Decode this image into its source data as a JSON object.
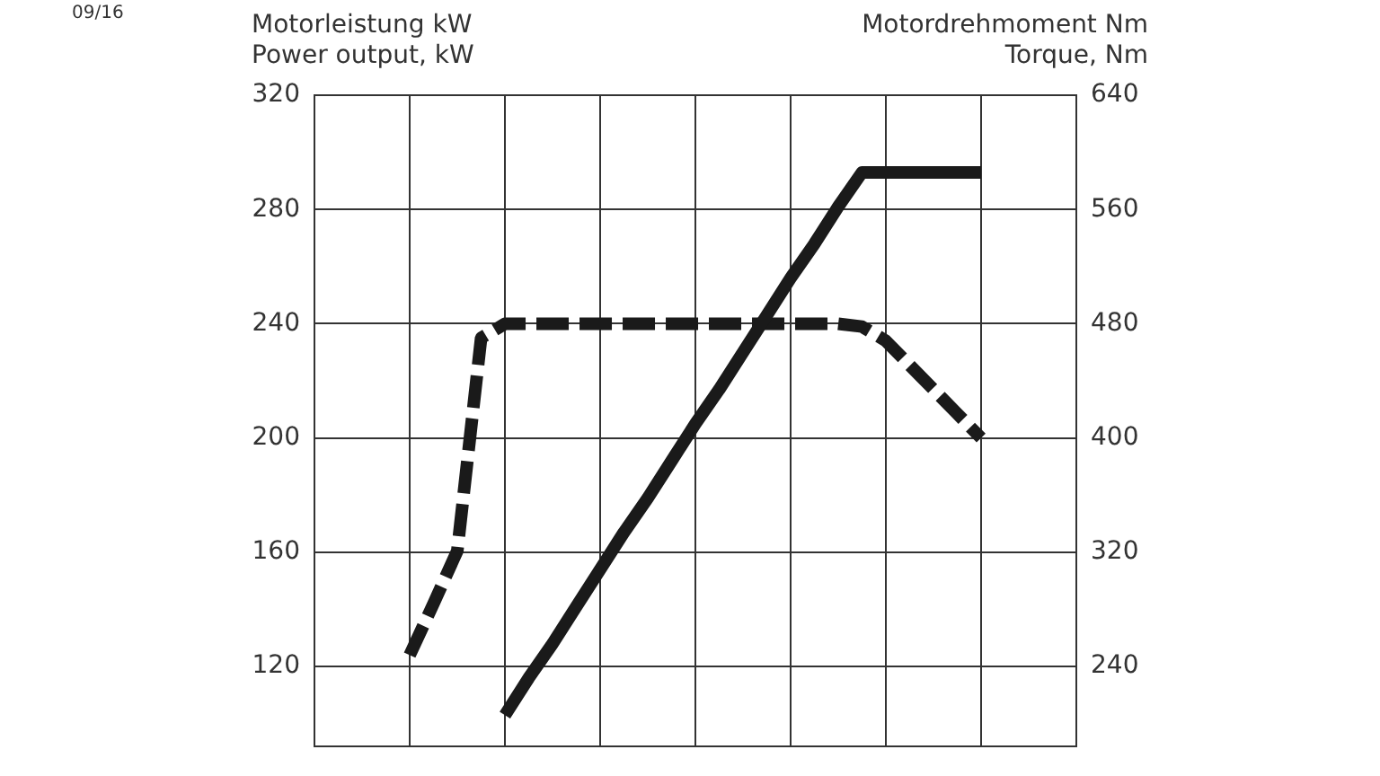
{
  "chart_data": {
    "type": "line",
    "ylabel": "Motorleistung kW\nPower output, kW",
    "y2label": "Motordrehmoment Nm\nTorque, Nm",
    "annotations": [
      "09/16"
    ],
    "categories": [
      null,
      null,
      null,
      null,
      null,
      null,
      null,
      null,
      null,
      null,
      null,
      null,
      null,
      null,
      null,
      null,
      null,
      null,
      null,
      null,
      null,
      null,
      null,
      null,
      null,
      null,
      null,
      null,
      null,
      null,
      null,
      null,
      null
    ],
    "ylim": [
      92,
      320
    ],
    "yticks": [
      120,
      160,
      200,
      240,
      280,
      320
    ],
    "y2lim": [
      184,
      640
    ],
    "y2ticks": [
      240,
      320,
      400,
      480,
      560,
      640
    ],
    "grid": true,
    "marker": "none",
    "series": [
      {
        "color": "#1a1a1a",
        "line_style": "solid",
        "values": [
          null,
          null,
          null,
          null,
          null,
          null,
          null,
          null,
          103,
          116,
          128,
          141,
          154,
          167,
          179,
          192,
          205,
          217,
          230,
          243,
          256,
          268,
          281,
          293,
          293,
          293,
          293,
          293,
          293,
          null,
          null,
          null,
          null
        ]
      },
      {
        "color": "#1a1a1a",
        "line_style": "dashed",
        "axis": "y2",
        "values": [
          null,
          null,
          null,
          null,
          248,
          284,
          321,
          470,
          480,
          480,
          480,
          480,
          480,
          480,
          480,
          480,
          480,
          480,
          480,
          480,
          480,
          480,
          480,
          478,
          468,
          451,
          434,
          417,
          400,
          null,
          null,
          null,
          null
        ]
      }
    ]
  }
}
